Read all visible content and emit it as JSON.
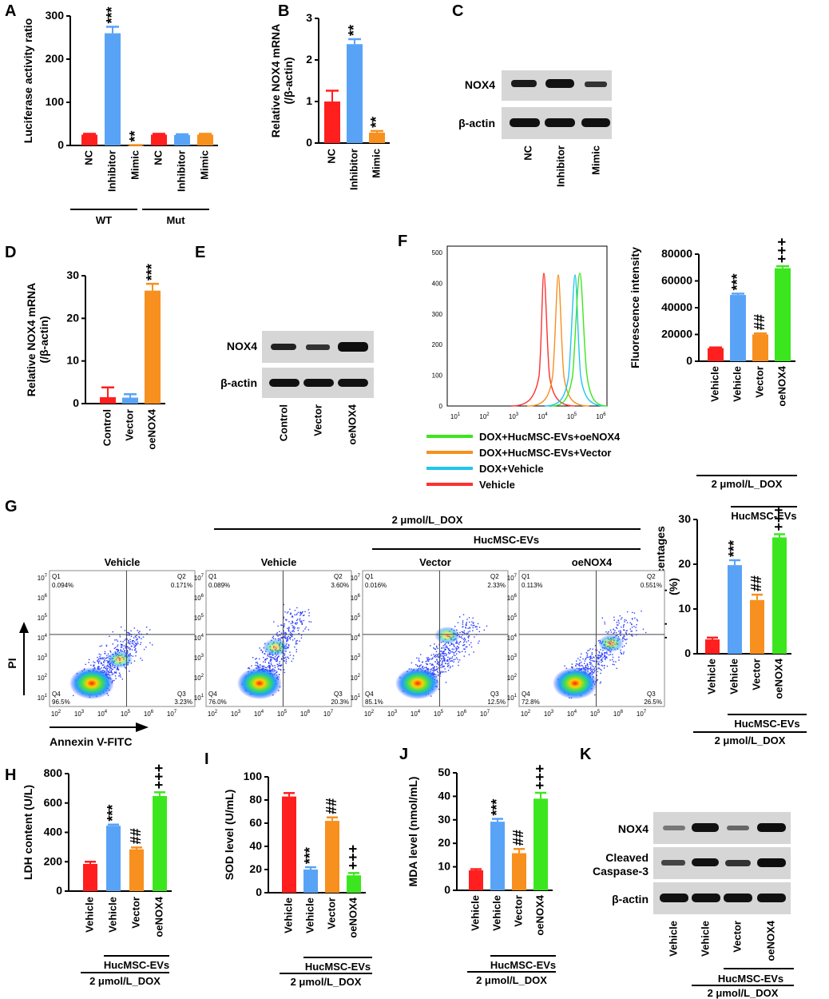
{
  "colors": {
    "red": "#ff1f1f",
    "blue": "#59a3f7",
    "orange": "#f7901e",
    "green": "#3ce61e",
    "cyan": "#1fc6ef"
  },
  "panels": {
    "A": {
      "letter": "A",
      "groups": [
        "WT",
        "Mut"
      ]
    },
    "B": {
      "letter": "B"
    },
    "C": {
      "letter": "C",
      "labels": [
        "NOX4",
        "β-actin"
      ],
      "lanes": [
        "NC",
        "Inhibitor",
        "Mimic"
      ]
    },
    "D": {
      "letter": "D"
    },
    "E": {
      "letter": "E",
      "labels": [
        "NOX4",
        "β-actin"
      ],
      "lanes": [
        "Control",
        "Vector",
        "oeNOX4"
      ]
    },
    "F": {
      "letter": "F",
      "hist_yticks": [
        "500",
        "400",
        "300",
        "200",
        "100",
        "0"
      ],
      "hist_xticks": [
        "10",
        "10",
        "10",
        "10",
        "10",
        "10"
      ],
      "hist_xexps": [
        "1",
        "2",
        "3",
        "4",
        "5",
        "6"
      ],
      "legend": [
        "DOX+HucMSC-EVs+oeNOX4",
        "DOX+HucMSC-EVs+Vector",
        "DOX+Vehicle",
        "Vehicle"
      ]
    },
    "G": {
      "letter": "G",
      "dox": "2 μmol/L_DOX",
      "evs": "HucMSC-EVs",
      "flow_titles": [
        "Vehicle",
        "Vehicle",
        "Vector",
        "oeNOX4"
      ],
      "quads": [
        [
          "0.094%",
          "0.171%",
          "96.5%",
          "3.23%"
        ],
        [
          "0.089%",
          "3.60%",
          "76.0%",
          "20.3%"
        ],
        [
          "0.016%",
          "2.33%",
          "85.1%",
          "12.5%"
        ],
        [
          "0.113%",
          "0.551%",
          "72.8%",
          "26.5%"
        ]
      ],
      "qnames": [
        "Q1",
        "Q2",
        "Q4",
        "Q3"
      ],
      "flow_exps": [
        "7",
        "6",
        "5",
        "4",
        "3",
        "2",
        "1"
      ],
      "yaxis": "PI",
      "xaxis": "Annexin V-FITC"
    },
    "H": {
      "letter": "H"
    },
    "I": {
      "letter": "I"
    },
    "J": {
      "letter": "J"
    },
    "K": {
      "letter": "K",
      "labels": [
        "NOX4",
        "Cleaved",
        "Caspase-3",
        "β-actin"
      ],
      "lanes": [
        "Vehicle",
        "Vehicle",
        "Vector",
        "oeNOX4"
      ],
      "evs": "HucMSC-EVs",
      "dox": "2 μmol/L_DOX"
    }
  },
  "chart_data": [
    {
      "id": "A",
      "type": "bar",
      "ylabel": "Luciferase activity ratio",
      "ylim": [
        0,
        300
      ],
      "yticks": [
        0,
        100,
        200,
        300
      ],
      "categories": [
        "NC",
        "Inhibitor",
        "Mimic",
        "NC",
        "Inhibitor",
        "Mimic"
      ],
      "values": [
        25,
        260,
        0.5,
        25,
        24,
        25
      ],
      "errors": [
        2,
        15,
        0.3,
        2,
        2,
        2
      ],
      "colors": [
        "red",
        "blue",
        "orange",
        "red",
        "blue",
        "orange"
      ],
      "annotations": [
        "",
        "***",
        "**",
        "",
        "",
        ""
      ]
    },
    {
      "id": "B",
      "type": "bar",
      "ylabel": "Relative NOX4 mRNA\n(/β-actin)",
      "ylim": [
        0,
        3
      ],
      "yticks": [
        0,
        1,
        2,
        3
      ],
      "categories": [
        "NC",
        "Inhibitor",
        "Mimic"
      ],
      "values": [
        1.0,
        2.38,
        0.25
      ],
      "errors": [
        0.26,
        0.12,
        0.04
      ],
      "colors": [
        "red",
        "blue",
        "orange"
      ],
      "annotations": [
        "",
        "**",
        "**"
      ]
    },
    {
      "id": "D",
      "type": "bar",
      "ylabel": "Relative NOX4 mRNA\n(/β-actin)",
      "ylim": [
        0,
        30
      ],
      "yticks": [
        0,
        10,
        20,
        30
      ],
      "categories": [
        "Control",
        "Vector",
        "oeNOX4"
      ],
      "values": [
        1.5,
        1.4,
        26.5
      ],
      "errors": [
        2.3,
        0.8,
        1.6
      ],
      "colors": [
        "red",
        "blue",
        "orange"
      ],
      "annotations": [
        "",
        "",
        "***"
      ]
    },
    {
      "id": "F",
      "type": "bar",
      "ylabel": "Fluorescence intensity",
      "ylim": [
        0,
        80000
      ],
      "yticks": [
        0,
        20000,
        40000,
        60000,
        80000
      ],
      "categories": [
        "Vehicle",
        "Vehicle",
        "Vector",
        "oeNOX4"
      ],
      "values": [
        9800,
        49500,
        20000,
        69500
      ],
      "errors": [
        500,
        1000,
        800,
        1500
      ],
      "colors": [
        "red",
        "blue",
        "orange",
        "green"
      ],
      "annotations": [
        "",
        "***",
        "##",
        "+++"
      ]
    },
    {
      "id": "G",
      "type": "bar",
      "ylabel": "Apoptotic percentages\n(%)",
      "ylim": [
        0,
        30
      ],
      "yticks": [
        0,
        10,
        20,
        30
      ],
      "categories": [
        "Vehicle",
        "Vehicle",
        "Vector",
        "oeNOX4"
      ],
      "values": [
        3.2,
        19.8,
        12.0,
        26.0
      ],
      "errors": [
        0.4,
        1.1,
        1.2,
        0.7
      ],
      "colors": [
        "red",
        "blue",
        "orange",
        "green"
      ],
      "annotations": [
        "",
        "***",
        "##",
        "+++"
      ]
    },
    {
      "id": "H",
      "type": "bar",
      "ylabel": "LDH content (U/L)",
      "ylim": [
        0,
        800
      ],
      "yticks": [
        0,
        200,
        400,
        600,
        800
      ],
      "categories": [
        "Vehicle",
        "Vehicle",
        "Vector",
        "oeNOX4"
      ],
      "values": [
        185,
        445,
        285,
        648
      ],
      "errors": [
        15,
        8,
        12,
        25
      ],
      "colors": [
        "red",
        "blue",
        "orange",
        "green"
      ],
      "annotations": [
        "",
        "***",
        "##",
        "+++"
      ]
    },
    {
      "id": "I",
      "type": "bar",
      "ylabel": "SOD level (U/mL)",
      "ylim": [
        0,
        100
      ],
      "yticks": [
        0,
        20,
        40,
        60,
        80,
        100
      ],
      "categories": [
        "Vehicle",
        "Vehicle",
        "Vector",
        "oeNOX4"
      ],
      "values": [
        83,
        20,
        62,
        15
      ],
      "errors": [
        3,
        2,
        3,
        2
      ],
      "colors": [
        "red",
        "blue",
        "orange",
        "green"
      ],
      "annotations": [
        "",
        "***",
        "##",
        "+++"
      ]
    },
    {
      "id": "J",
      "type": "bar",
      "ylabel": "MDA level (nmol/mL)",
      "ylim": [
        0,
        50
      ],
      "yticks": [
        0,
        10,
        20,
        30,
        40,
        50
      ],
      "categories": [
        "Vehicle",
        "Vehicle",
        "Vector",
        "oeNOX4"
      ],
      "values": [
        8.5,
        29.2,
        15.8,
        39.0
      ],
      "errors": [
        0.5,
        1.2,
        1.8,
        2.5
      ],
      "colors": [
        "red",
        "blue",
        "orange",
        "green"
      ],
      "annotations": [
        "",
        "***",
        "##",
        "+++"
      ]
    }
  ],
  "group_labels": {
    "evs": "HucMSC-EVs",
    "dox": "2 μmol/L_DOX"
  }
}
